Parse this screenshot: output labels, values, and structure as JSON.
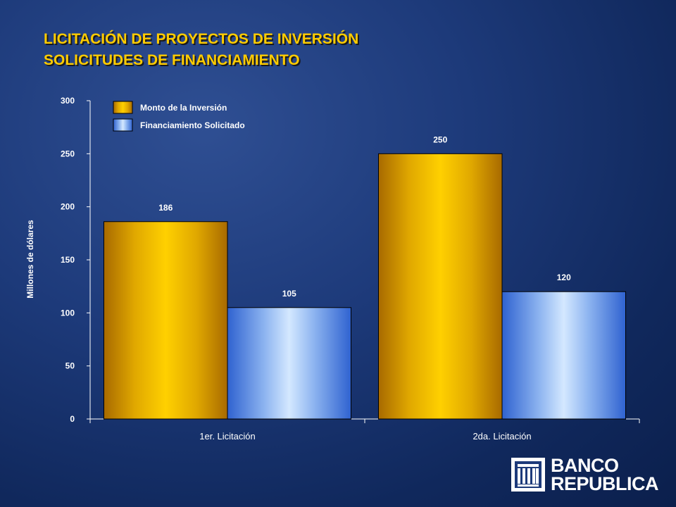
{
  "title": {
    "line1": "LICITACIÓN DE PROYECTOS DE INVERSIÓN",
    "line2": "SOLICITUDES DE FINANCIAMIENTO"
  },
  "logo": {
    "line1": "BANCO",
    "line2": "REPUBLICA"
  },
  "colors": {
    "title": "#ffcc00",
    "inversion": "#ffcc00",
    "financiamiento": "#3a6fd8",
    "background": "#1d3a7a"
  },
  "chart_data": {
    "type": "bar",
    "categories": [
      "1er. Licitación",
      "2da. Licitación"
    ],
    "series": [
      {
        "name": "Monto de la Inversión",
        "values": [
          186,
          250
        ]
      },
      {
        "name": "Financiamiento Solicitado",
        "values": [
          105,
          120
        ]
      }
    ],
    "ylabel": "Millones de dólares",
    "xlabel": "",
    "ylim": [
      0,
      300
    ],
    "yticks": [
      0,
      50,
      100,
      150,
      200,
      250,
      300
    ],
    "grid": false,
    "legend": "top-left"
  }
}
